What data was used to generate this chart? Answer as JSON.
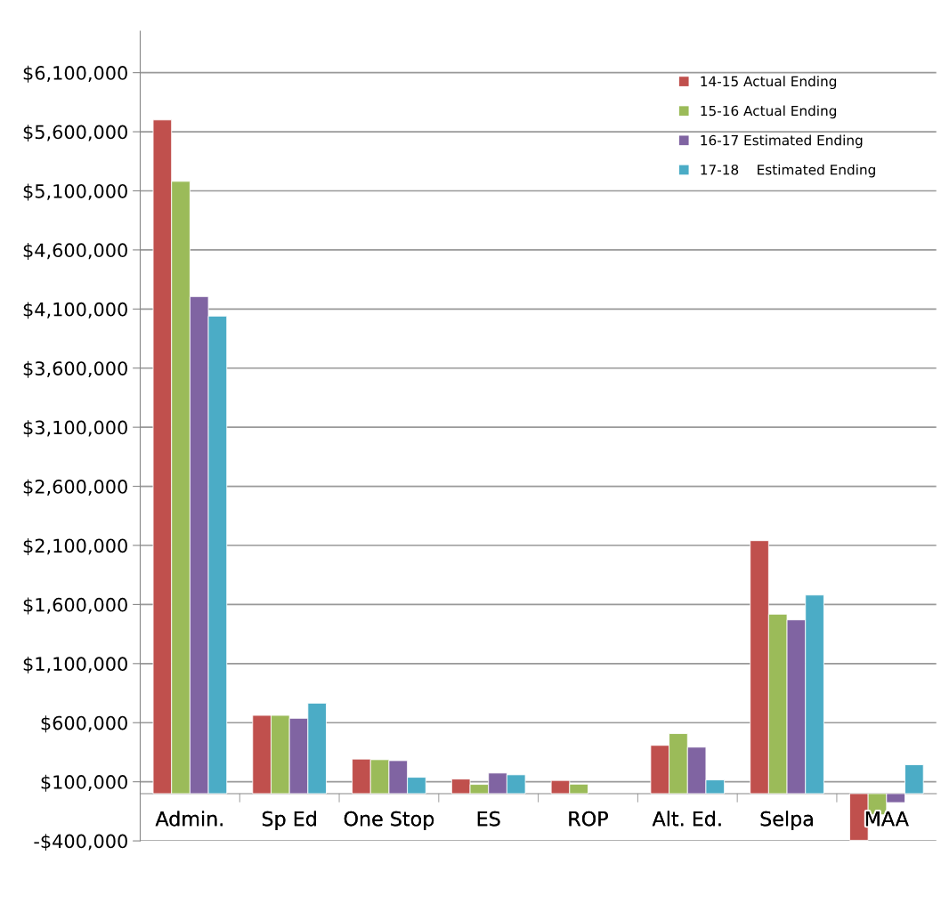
{
  "chart_data": {
    "type": "bar",
    "categories": [
      "Admin.",
      "Sp Ed",
      "One Stop",
      "ES",
      "ROP",
      "Alt. Ed.",
      "Selpa",
      "MAA"
    ],
    "series": [
      {
        "name": "14-15 Actual Ending",
        "color": "#c0504d",
        "values": [
          5700000,
          662000,
          292000,
          123000,
          111000,
          408000,
          2140000,
          -395000
        ]
      },
      {
        "name": "15-16 Actual Ending",
        "color": "#9bbb59",
        "values": [
          5180000,
          662000,
          287000,
          78000,
          80000,
          508000,
          1518000,
          -179000
        ]
      },
      {
        "name": "16-17 Estimated Ending",
        "color": "#8064a2",
        "values": [
          4205000,
          637000,
          279000,
          174000,
          null,
          393000,
          1470000,
          -76000
        ]
      },
      {
        "name": "17-18    Estimated Ending",
        "color": "#4bacc6",
        "values": [
          4040000,
          765000,
          138000,
          159000,
          null,
          116000,
          1680000,
          244000
        ]
      }
    ],
    "ylim": [
      -400000,
      6450000
    ],
    "yticks": [
      {
        "value": -400000,
        "label": "-$400,000"
      },
      {
        "value": 100000,
        "label": "$100,000"
      },
      {
        "value": 600000,
        "label": "$600,000"
      },
      {
        "value": 1100000,
        "label": "$1,100,000"
      },
      {
        "value": 1600000,
        "label": "$1,600,000"
      },
      {
        "value": 2100000,
        "label": "$2,100,000"
      },
      {
        "value": 2600000,
        "label": "$2,600,000"
      },
      {
        "value": 3100000,
        "label": "$3,100,000"
      },
      {
        "value": 3600000,
        "label": "$3,600,000"
      },
      {
        "value": 4100000,
        "label": "$4,100,000"
      },
      {
        "value": 4600000,
        "label": "$4,600,000"
      },
      {
        "value": 5100000,
        "label": "$5,100,000"
      },
      {
        "value": 5600000,
        "label": "$5,600,000"
      },
      {
        "value": 6100000,
        "label": "$6,100,000"
      }
    ],
    "grid": "y",
    "legend": "top right"
  }
}
